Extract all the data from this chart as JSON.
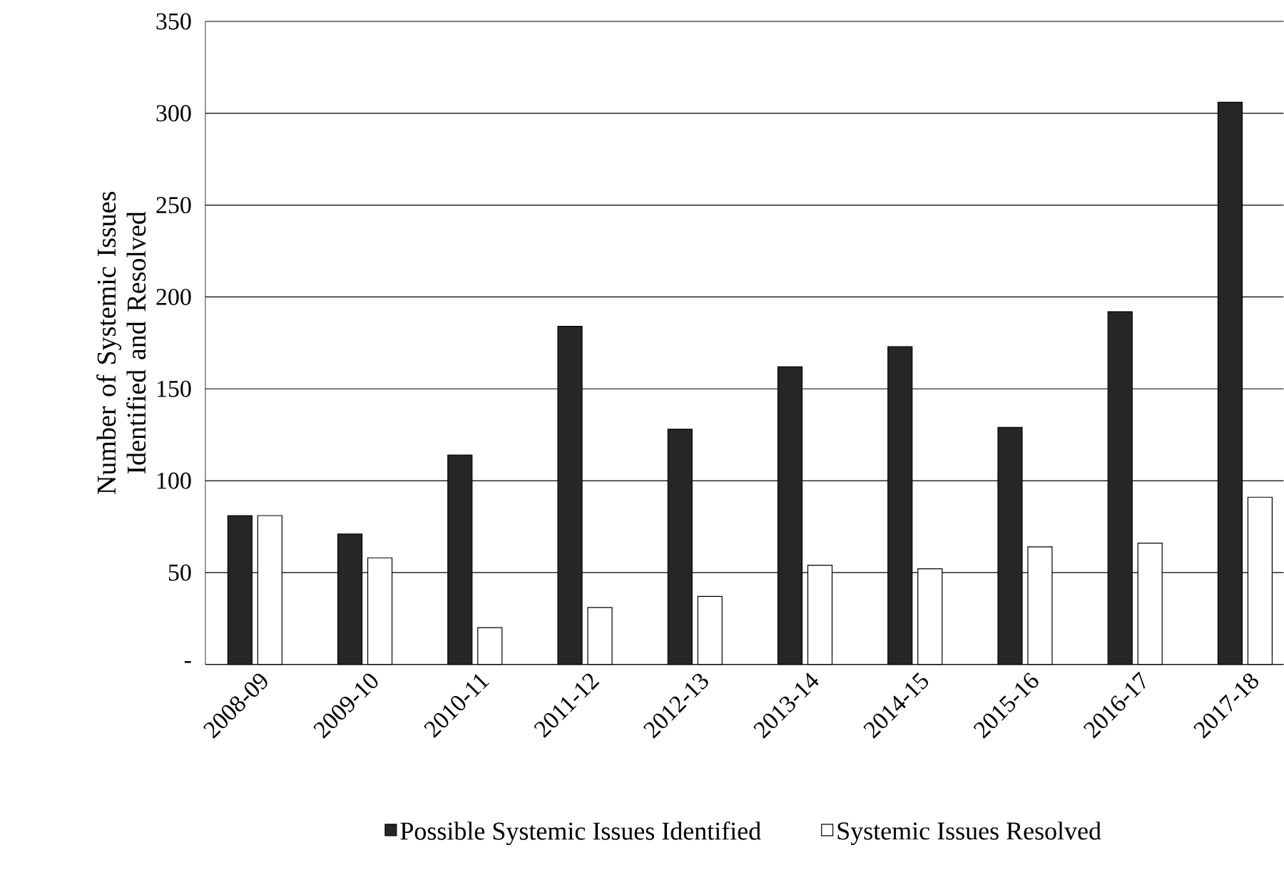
{
  "chart_data": {
    "type": "bar",
    "ylabel": "Number of Systemic Issues Identified and Resolved",
    "categories": [
      "2008-09",
      "2009-10",
      "2010-11",
      "2011-12",
      "2012-13",
      "2013-14",
      "2014-15",
      "2015-16",
      "2016-17",
      "2017-18"
    ],
    "series": [
      {
        "name": "Possible Systemic Issues Identified",
        "color": "#262626",
        "values": [
          81,
          71,
          114,
          184,
          128,
          162,
          173,
          129,
          192,
          306
        ]
      },
      {
        "name": "Systemic Issues Resolved",
        "color": "#ffffff",
        "values": [
          81,
          58,
          20,
          31,
          37,
          54,
          52,
          64,
          66,
          91
        ]
      }
    ],
    "ylim": [
      0,
      350
    ],
    "yticks": [
      {
        "value": 0,
        "label": "-"
      },
      50,
      100,
      150,
      200,
      250,
      300,
      350
    ],
    "grid": "y",
    "legend": "bottom"
  }
}
